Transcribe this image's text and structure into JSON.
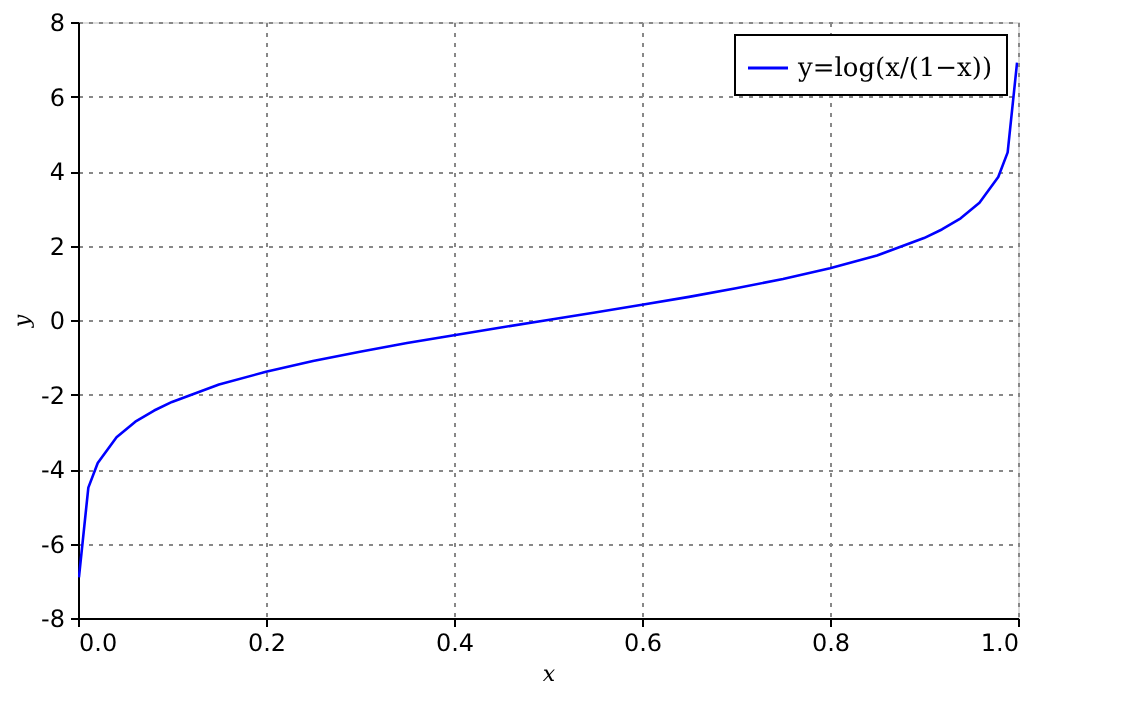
{
  "chart_data": {
    "type": "line",
    "xlabel": "x",
    "ylabel": "y",
    "x": [
      0.001,
      0.011,
      0.021,
      0.041,
      0.061,
      0.081,
      0.1,
      0.15,
      0.2,
      0.25,
      0.3,
      0.35,
      0.4,
      0.45,
      0.5,
      0.55,
      0.6,
      0.65,
      0.7,
      0.75,
      0.8,
      0.85,
      0.9,
      0.919,
      0.939,
      0.959,
      0.979,
      0.989,
      0.999
    ],
    "series": [
      {
        "name": "y=log(x/(1−x))",
        "color": "#0000ff",
        "values": [
          -6.91,
          -4.5,
          -3.84,
          -3.15,
          -2.73,
          -2.43,
          -2.2,
          -1.73,
          -1.39,
          -1.1,
          -0.85,
          -0.62,
          -0.41,
          -0.2,
          0,
          0.2,
          0.41,
          0.62,
          0.85,
          1.1,
          1.39,
          1.73,
          2.2,
          2.43,
          2.73,
          3.15,
          3.84,
          4.5,
          6.91
        ]
      }
    ],
    "xlim": [
      0,
      1
    ],
    "xticks": [
      {
        "value": 0,
        "label": "0.0"
      },
      {
        "value": 0.2,
        "label": "0.2"
      },
      {
        "value": 0.4,
        "label": "0.4"
      },
      {
        "value": 0.6,
        "label": "0.6"
      },
      {
        "value": 0.8,
        "label": "0.8"
      },
      {
        "value": 1,
        "label": "1.0"
      }
    ],
    "ylim": [
      -8,
      8
    ],
    "yticks": [
      -8,
      -6,
      -4,
      -2,
      0,
      2,
      4,
      6,
      8
    ],
    "grid": true,
    "legend": "top right",
    "line_style": "solid",
    "marker": "none"
  }
}
